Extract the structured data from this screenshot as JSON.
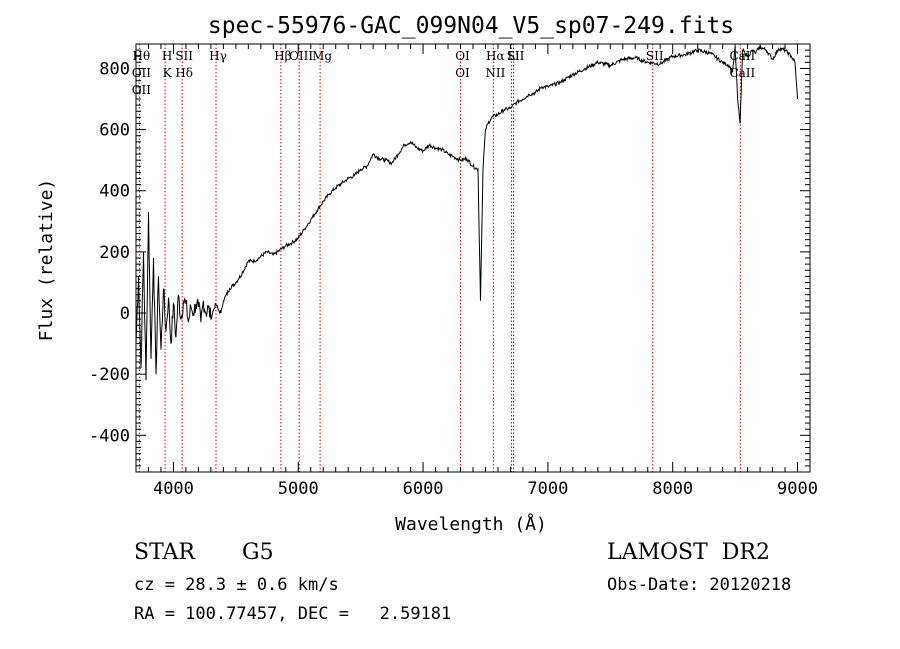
{
  "chart_data": {
    "type": "line",
    "title": "spec-55976-GAC_099N04_V5_sp07-249.fits",
    "xlabel": "Wavelength (Å)",
    "ylabel": "Flux (relative)",
    "xlim": [
      3700,
      9100
    ],
    "ylim": [
      -520,
      880
    ],
    "x_ticks": [
      4000,
      5000,
      6000,
      7000,
      8000,
      9000
    ],
    "y_ticks": [
      -400,
      -200,
      0,
      200,
      400,
      600,
      800
    ],
    "grid": false,
    "line_color": "#000000",
    "marker_color": "#cc0000",
    "series": [
      {
        "x": [
          3700,
          3720,
          3740,
          3760,
          3780,
          3800,
          3820,
          3840,
          3860,
          3880,
          3900,
          3920,
          3940,
          3960,
          3980,
          4000,
          4020,
          4040,
          4060,
          4080,
          4100,
          4120,
          4140,
          4160,
          4180,
          4200,
          4220,
          4240,
          4260,
          4280,
          4300,
          4320,
          4340,
          4360,
          4380,
          4400,
          4450,
          4500,
          4550,
          4600,
          4650,
          4700,
          4750,
          4800,
          4850,
          4900,
          4950,
          5000,
          5050,
          5100,
          5150,
          5200,
          5250,
          5300,
          5350,
          5400,
          5450,
          5500,
          5550,
          5600,
          5650,
          5700,
          5750,
          5800,
          5850,
          5900,
          5950,
          6000,
          6050,
          6100,
          6150,
          6200,
          6250,
          6300,
          6350,
          6400,
          6440,
          6460,
          6480,
          6500,
          6520,
          6550,
          6600,
          6650,
          6700,
          6750,
          6800,
          6850,
          6900,
          6950,
          7000,
          7100,
          7200,
          7300,
          7400,
          7500,
          7600,
          7700,
          7800,
          7900,
          8000,
          8100,
          8200,
          8300,
          8400,
          8450,
          8480,
          8500,
          8520,
          8540,
          8560,
          8600,
          8640,
          8660,
          8700,
          8750,
          8800,
          8850,
          8900,
          8950,
          8980,
          9000
        ],
        "y": [
          -100,
          120,
          -180,
          200,
          -220,
          330,
          -150,
          180,
          -200,
          120,
          -120,
          80,
          -60,
          50,
          -100,
          30,
          -80,
          60,
          -20,
          40,
          30,
          -30,
          20,
          0,
          30,
          20,
          -30,
          40,
          0,
          20,
          -20,
          10,
          30,
          10,
          0,
          40,
          80,
          100,
          130,
          170,
          170,
          185,
          200,
          190,
          205,
          220,
          230,
          245,
          275,
          305,
          335,
          365,
          390,
          410,
          425,
          440,
          450,
          470,
          480,
          520,
          505,
          500,
          490,
          520,
          550,
          560,
          540,
          530,
          550,
          540,
          535,
          520,
          510,
          500,
          505,
          480,
          470,
          40,
          470,
          600,
          620,
          640,
          650,
          665,
          670,
          690,
          700,
          715,
          720,
          740,
          740,
          755,
          780,
          800,
          820,
          810,
          830,
          835,
          820,
          815,
          840,
          845,
          860,
          850,
          820,
          810,
          790,
          870,
          700,
          620,
          860,
          840,
          860,
          850,
          870,
          860,
          830,
          865,
          860,
          840,
          820,
          700
        ]
      }
    ],
    "annotations": [
      {
        "labels": [
          "Hθ",
          "OII",
          "OII"
        ],
        "x": 3727
      },
      {
        "labels": [
          "H",
          "K"
        ],
        "x": 3933
      },
      {
        "labels": [
          "SII",
          "Hδ"
        ],
        "x": 4070
      },
      {
        "labels": [
          "Hγ"
        ],
        "x": 4341
      },
      {
        "labels": [
          "Hβ"
        ],
        "x": 4861
      },
      {
        "labels": [
          "OIII"
        ],
        "x": 5007
      },
      {
        "labels": [
          "Mg"
        ],
        "x": 5175
      },
      {
        "labels": [
          "OI",
          "OI"
        ],
        "x": 6300
      },
      {
        "labels": [
          "Hα",
          "NII"
        ],
        "x": 6563
      },
      {
        "labels": [
          "Li"
        ],
        "x": 6708
      },
      {
        "labels": [
          "SII"
        ],
        "x": 6725
      },
      {
        "labels": [
          "SII"
        ],
        "x": 7840
      },
      {
        "labels": [
          "CaII",
          "CaII"
        ],
        "x": 8542
      }
    ]
  },
  "info": {
    "object_class": "STAR",
    "subclass": "G5",
    "survey": "LAMOST  DR2",
    "redshift": "cz = 28.3 ± 0.6 km/s",
    "obs_date": "Obs-Date: 20120218",
    "coords": "RA = 100.77457, DEC =   2.59181"
  }
}
